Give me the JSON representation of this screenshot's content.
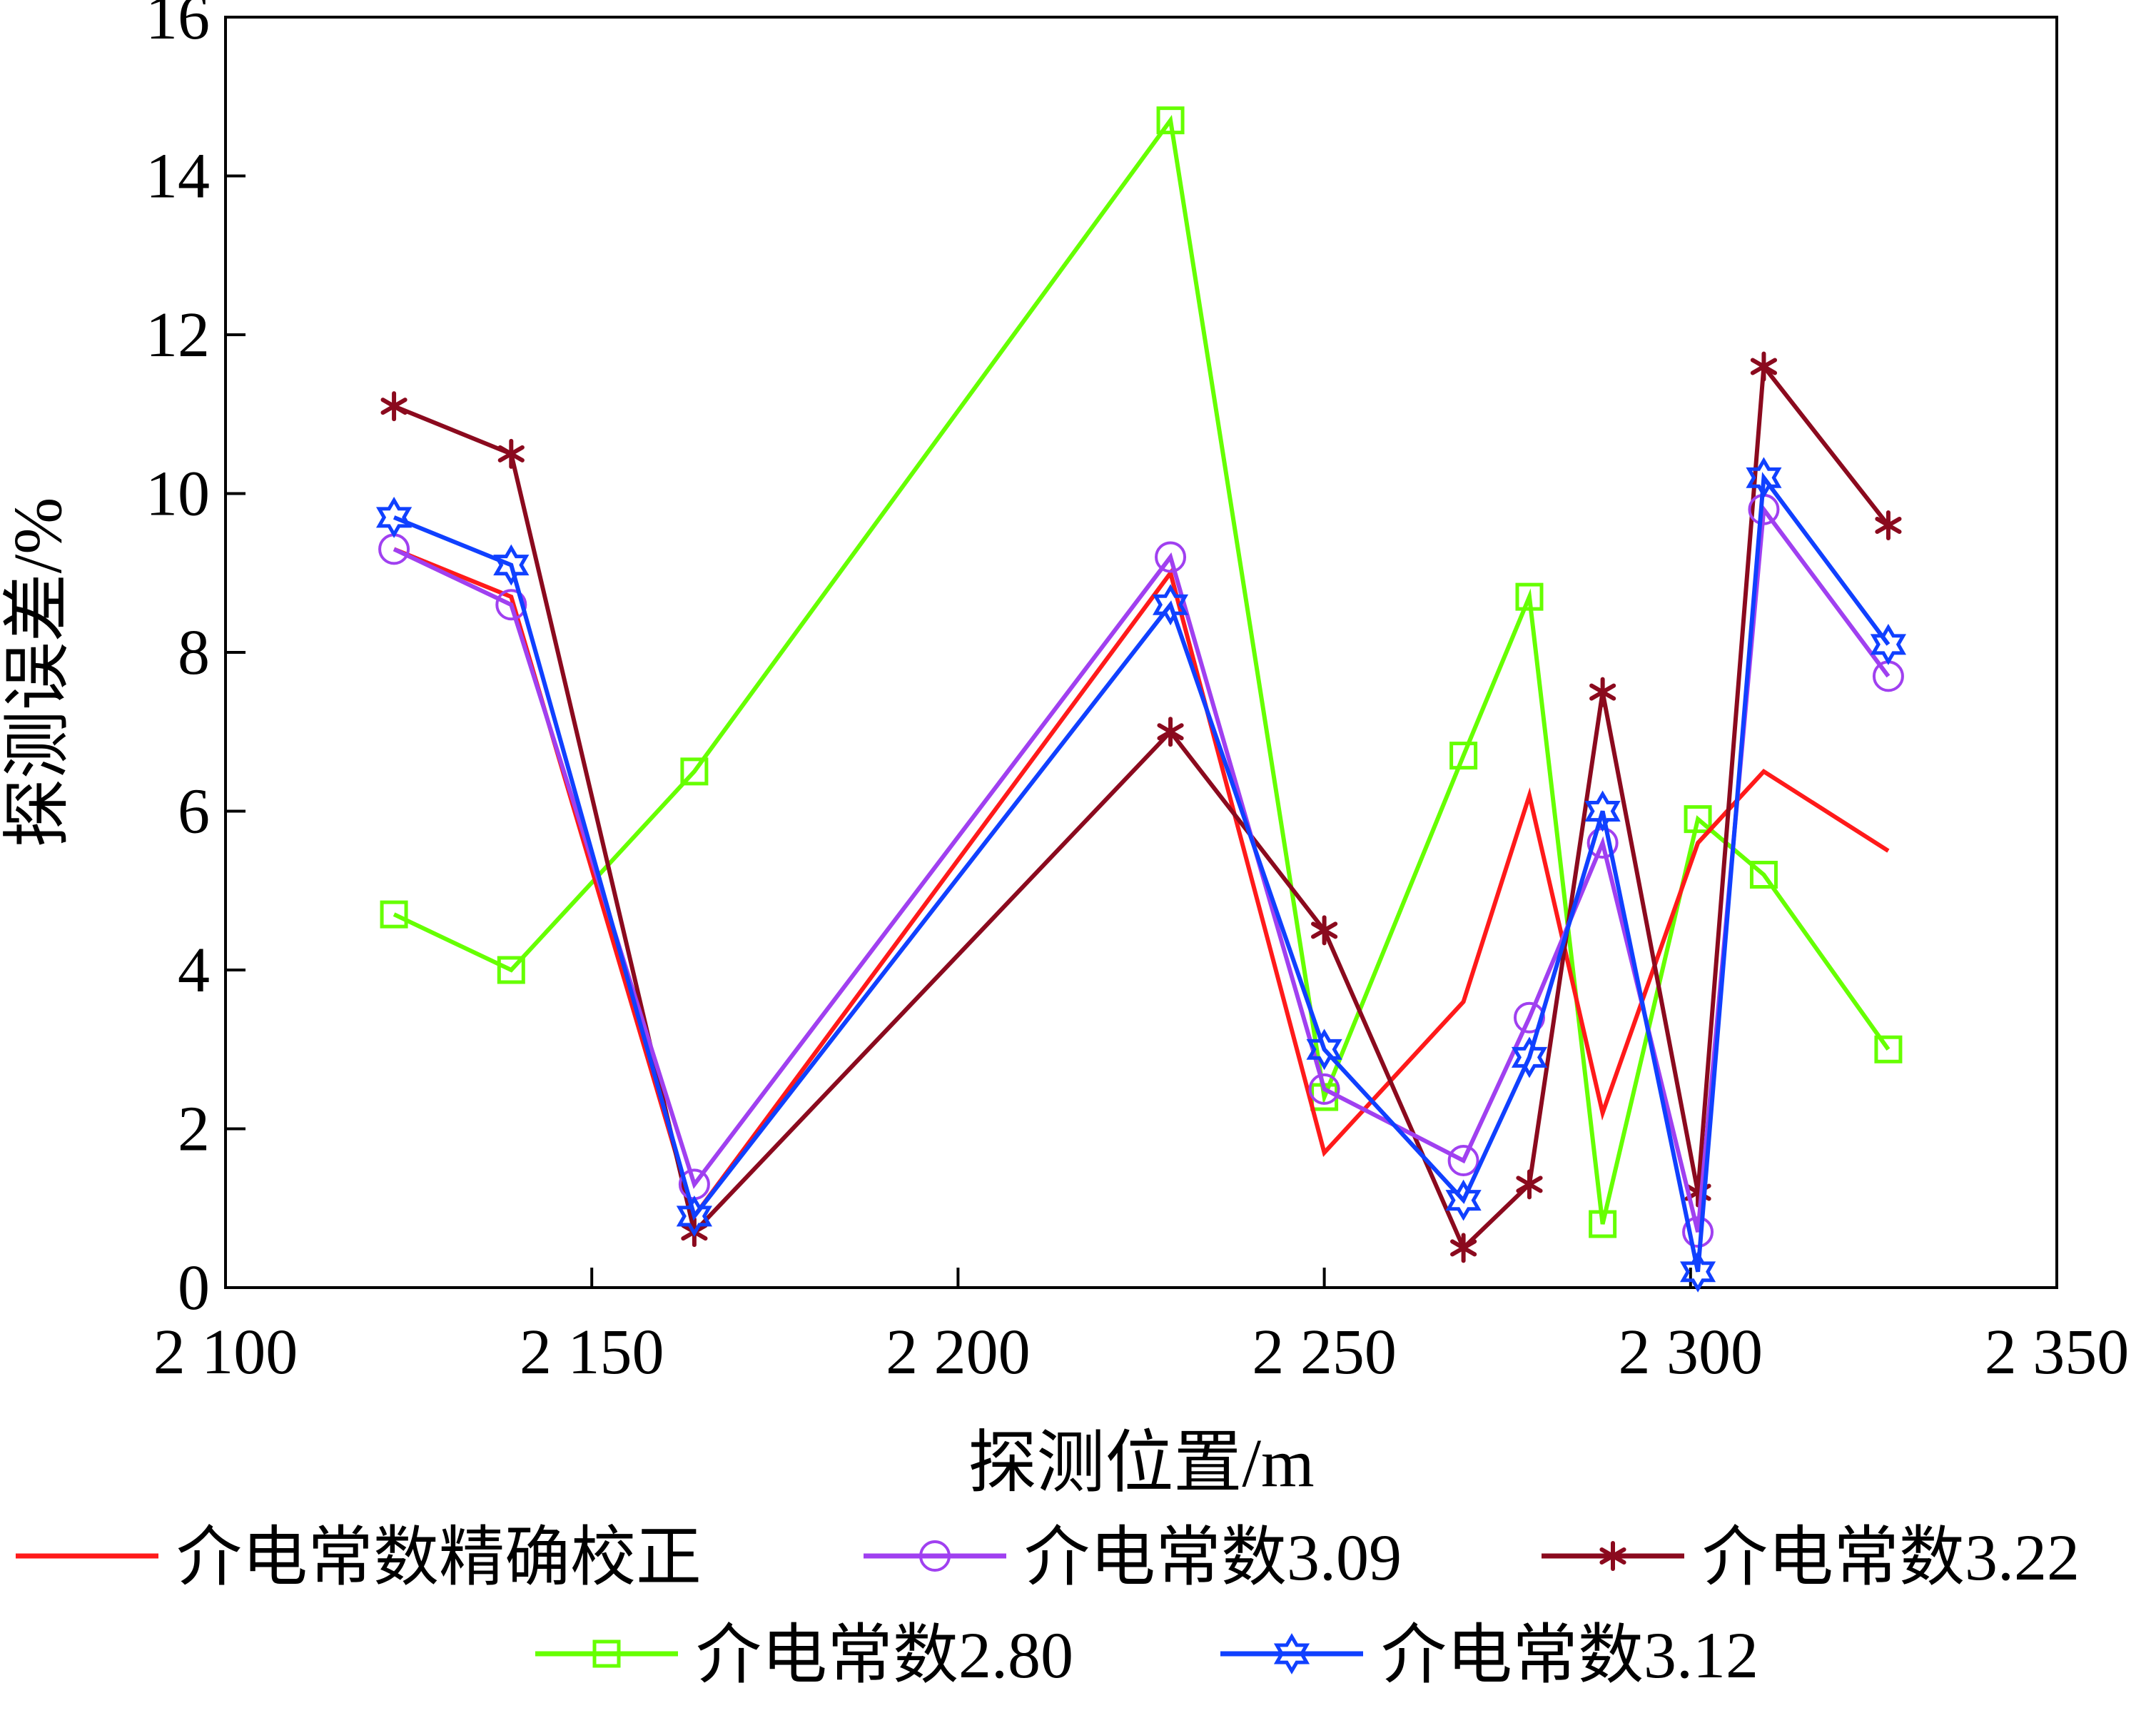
{
  "chart_data": {
    "type": "line",
    "xlabel": "探测位置/m",
    "ylabel": "探测误差/%",
    "xlim": [
      2100,
      2350
    ],
    "ylim": [
      0,
      16
    ],
    "xticks": [
      2100,
      2150,
      2200,
      2250,
      2300,
      2350
    ],
    "xtick_labels": [
      "2 100",
      "2 150",
      "2 200",
      "2 250",
      "2 300",
      "2 350"
    ],
    "yticks": [
      0,
      2,
      4,
      6,
      8,
      10,
      12,
      14,
      16
    ],
    "ytick_labels": [
      "0",
      "2",
      "4",
      "6",
      "8",
      "10",
      "12",
      "14",
      "16"
    ],
    "grid": false,
    "legend_position": "bottom",
    "x": [
      2123,
      2139,
      2164,
      2229,
      2250,
      2269,
      2278,
      2288,
      2301,
      2310,
      2327
    ],
    "series": [
      {
        "name": "介电常数精确校正",
        "color": "#ff1a1a",
        "marker": "none",
        "values": [
          9.3,
          8.7,
          0.9,
          9.0,
          1.7,
          3.6,
          6.2,
          2.2,
          5.6,
          6.5,
          5.5
        ]
      },
      {
        "name": "介电常数3.09",
        "color": "#a040f0",
        "marker": "circle",
        "values": [
          9.3,
          8.6,
          1.3,
          9.2,
          2.5,
          1.6,
          3.4,
          5.6,
          0.7,
          9.8,
          7.7
        ]
      },
      {
        "name": "介电常数3.22",
        "color": "#8b0a1e",
        "marker": "asterisk",
        "values": [
          11.1,
          10.5,
          0.7,
          7.0,
          4.5,
          0.5,
          1.3,
          7.5,
          1.2,
          11.6,
          9.6
        ]
      },
      {
        "name": "介电常数2.80",
        "color": "#66ff00",
        "marker": "square",
        "values": [
          4.7,
          4.0,
          6.5,
          14.7,
          2.4,
          6.7,
          8.7,
          0.8,
          5.9,
          5.2,
          3.0
        ]
      },
      {
        "name": "介电常数3.12",
        "color": "#1040ff",
        "marker": "hexagram",
        "values": [
          9.7,
          9.1,
          0.9,
          8.6,
          3.0,
          1.1,
          2.9,
          6.0,
          0.2,
          10.2,
          8.1
        ]
      }
    ]
  }
}
